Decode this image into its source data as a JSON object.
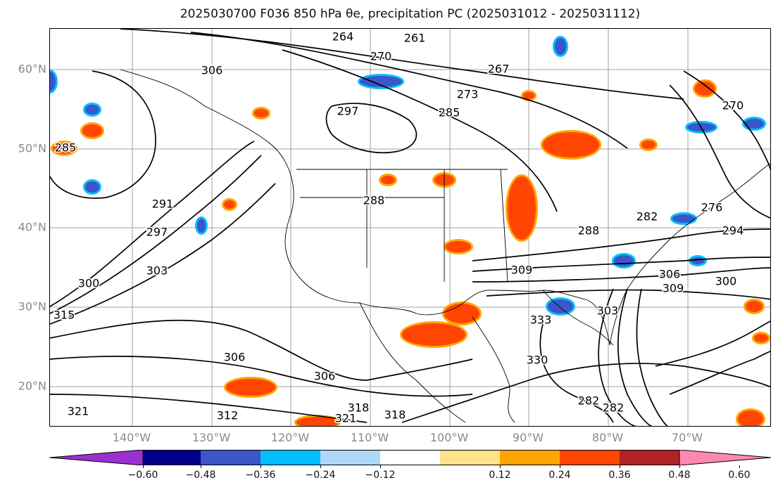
{
  "title": "2025030700 F036 850 hPa θe, precipitation PC (2025031012 - 2025031112)",
  "axes": {
    "lat_labels": [
      "60°N",
      "50°N",
      "40°N",
      "30°N",
      "20°N"
    ],
    "lon_labels": [
      "140°W",
      "130°W",
      "120°W",
      "110°W",
      "100°W",
      "90°W",
      "80°W",
      "70°W"
    ]
  },
  "colorbar": {
    "ticks": [
      "−0.60",
      "−0.48",
      "−0.36",
      "−0.24",
      "−0.12",
      "0.12",
      "0.24",
      "0.36",
      "0.48",
      "0.60"
    ],
    "colors": [
      "#9b30d0",
      "#00008b",
      "#3a56c8",
      "#00bfff",
      "#add8f7",
      "#ffffff",
      "#fde38a",
      "#ffa500",
      "#ff4500",
      "#b22222",
      "#ff88b2"
    ]
  },
  "contour_labels": [
    "264",
    "261",
    "270",
    "267",
    "273",
    "285",
    "297",
    "288",
    "285",
    "291",
    "297",
    "303",
    "300",
    "315",
    "306",
    "306",
    "312",
    "321",
    "318",
    "318",
    "321",
    "288",
    "282",
    "294",
    "309",
    "306",
    "309",
    "300",
    "303",
    "333",
    "330",
    "282",
    "276",
    "270",
    "306",
    "282"
  ],
  "map_layers": {
    "contour_color": "#000000",
    "graticule_color": "#a0a0a0",
    "positive_fill": "#ff4500",
    "positive_edge": "#ffa500",
    "negative_fill": "#3a56c8",
    "negative_edge": "#00bfff"
  }
}
